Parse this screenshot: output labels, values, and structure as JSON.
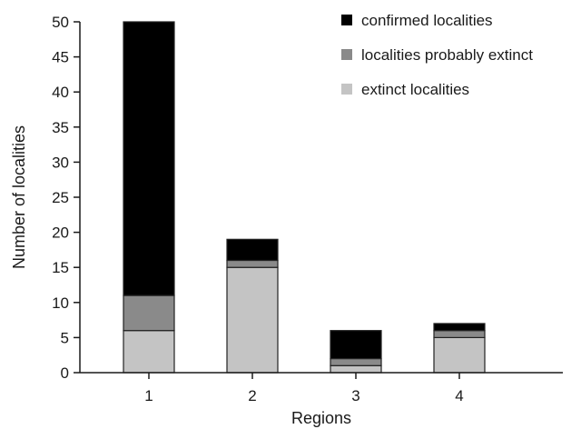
{
  "chart_data": {
    "type": "bar",
    "stacked": true,
    "categories": [
      "1",
      "2",
      "3",
      "4"
    ],
    "series": [
      {
        "name": "extinct localities",
        "values": [
          6,
          15,
          1,
          5
        ],
        "color": "#c4c4c4"
      },
      {
        "name": "localities probably extinct",
        "values": [
          5,
          1,
          1,
          1
        ],
        "color": "#8a8a8a"
      },
      {
        "name": "confirmed localities",
        "values": [
          39,
          3,
          4,
          1
        ],
        "color": "#000000"
      }
    ],
    "legend_order": [
      "confirmed localities",
      "localities probably extinct",
      "extinct localities"
    ],
    "legend_position": "top-right",
    "xlabel": "Regions",
    "ylabel": "Number of localities",
    "ylim": [
      0,
      50
    ],
    "yticks": [
      0,
      5,
      10,
      15,
      20,
      25,
      30,
      35,
      40,
      45,
      50
    ],
    "grid": false
  }
}
